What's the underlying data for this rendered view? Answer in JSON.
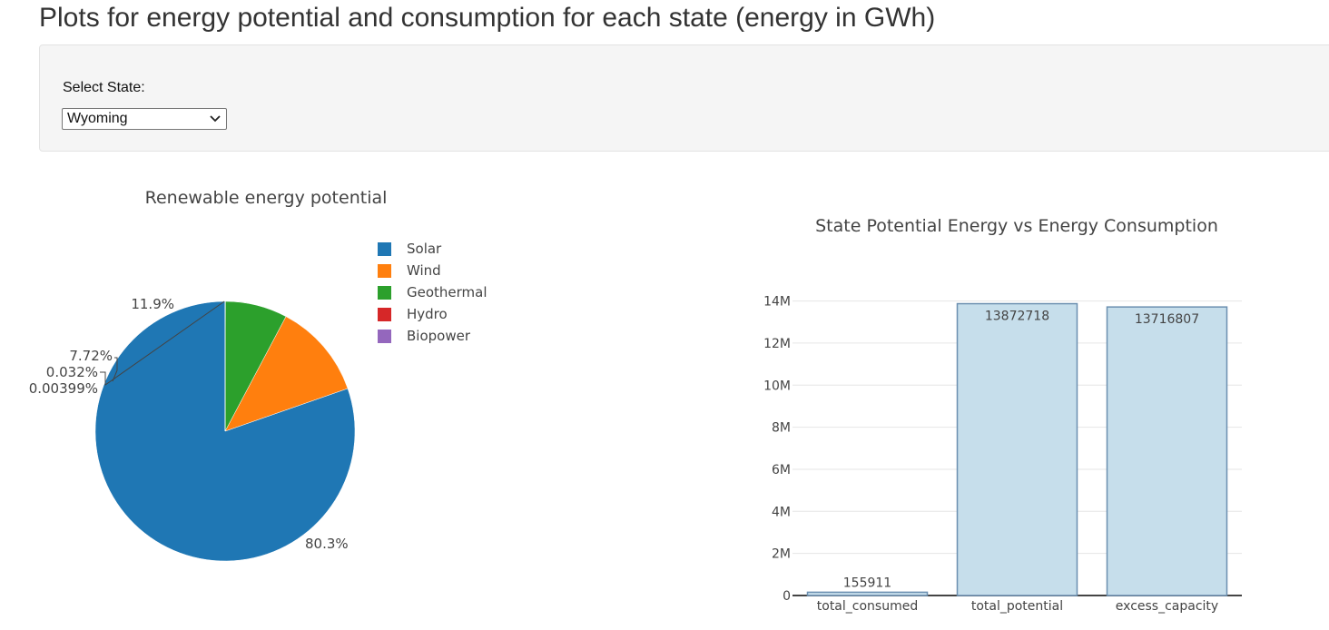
{
  "page": {
    "title": "Plots for energy potential and consumption for each state (energy in GWh)"
  },
  "controls": {
    "select_label": "Select State:",
    "selected_state": "Wyoming"
  },
  "colors": {
    "solar": "#1f77b4",
    "wind": "#ff7f0e",
    "geothermal": "#2ca02c",
    "hydro": "#d62728",
    "biopower": "#9467bd",
    "bar_fill": "#c6deeb",
    "bar_stroke": "#6b8fb0"
  },
  "chart_data": [
    {
      "type": "pie",
      "title": "Renewable energy potential",
      "labels": [
        "Solar",
        "Wind",
        "Geothermal",
        "Hydro",
        "Biopower"
      ],
      "values": [
        80.3,
        11.9,
        7.72,
        0.032,
        0.00399
      ],
      "text_labels": [
        "80.3%",
        "11.9%",
        "7.72%",
        "0.032%",
        "0.00399%"
      ],
      "colors": [
        "#1f77b4",
        "#ff7f0e",
        "#2ca02c",
        "#d62728",
        "#9467bd"
      ],
      "legend_position": "right"
    },
    {
      "type": "bar",
      "title": "State Potential Energy vs Energy Consumption",
      "categories": [
        "total_consumed",
        "total_potential",
        "excess_capacity"
      ],
      "values": [
        155911,
        13872718,
        13716807
      ],
      "value_labels": [
        "155911",
        "13872718",
        "13716807"
      ],
      "ylim": [
        0,
        14500000
      ],
      "yticks": [
        0,
        2000000,
        4000000,
        6000000,
        8000000,
        10000000,
        12000000,
        14000000
      ],
      "ytick_labels": [
        "0",
        "2M",
        "4M",
        "6M",
        "8M",
        "10M",
        "12M",
        "14M"
      ],
      "grid": true
    }
  ]
}
